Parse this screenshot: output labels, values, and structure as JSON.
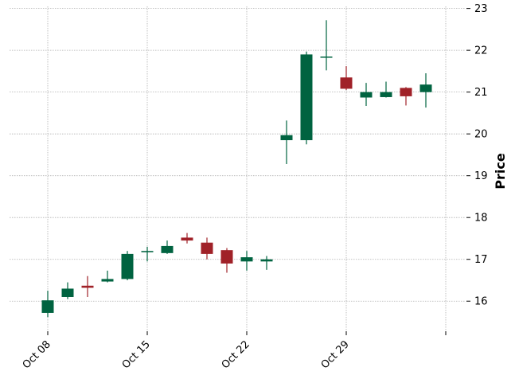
{
  "chart_data": {
    "type": "candlestick",
    "title": "",
    "xlabel": "",
    "ylabel": "Price",
    "ylim": [
      15.3,
      23.05
    ],
    "yticks": [
      16,
      17,
      18,
      19,
      20,
      21,
      22,
      23
    ],
    "grid": true,
    "y_axis_side": "right",
    "colors": {
      "up": "#006340",
      "down": "#a02128",
      "grid": "#b0b0b0"
    },
    "x_tick_labels": [
      "Oct 08",
      "Oct 15",
      "Oct 22",
      "Oct 29",
      ""
    ],
    "x_tick_dates": [
      "2012-10-08",
      "2012-10-15",
      "2012-10-22",
      "2012-10-29",
      "2012-11-05"
    ],
    "candles": [
      {
        "date": "2012-10-08",
        "open": 15.72,
        "high": 16.25,
        "low": 15.62,
        "close": 16.02
      },
      {
        "date": "2012-10-09",
        "open": 16.1,
        "high": 16.45,
        "low": 16.05,
        "close": 16.3
      },
      {
        "date": "2012-10-10",
        "open": 16.37,
        "high": 16.6,
        "low": 16.1,
        "close": 16.32
      },
      {
        "date": "2012-10-11",
        "open": 16.47,
        "high": 16.73,
        "low": 16.45,
        "close": 16.53
      },
      {
        "date": "2012-10-12",
        "open": 16.53,
        "high": 17.2,
        "low": 16.5,
        "close": 17.13
      },
      {
        "date": "2012-10-15",
        "open": 17.17,
        "high": 17.3,
        "low": 16.95,
        "close": 17.2
      },
      {
        "date": "2012-10-16",
        "open": 17.15,
        "high": 17.45,
        "low": 17.13,
        "close": 17.32
      },
      {
        "date": "2012-10-17",
        "open": 17.52,
        "high": 17.63,
        "low": 17.38,
        "close": 17.45
      },
      {
        "date": "2012-10-18",
        "open": 17.4,
        "high": 17.52,
        "low": 17.0,
        "close": 17.13
      },
      {
        "date": "2012-10-19",
        "open": 17.22,
        "high": 17.27,
        "low": 16.68,
        "close": 16.9
      },
      {
        "date": "2012-10-22",
        "open": 16.95,
        "high": 17.2,
        "low": 16.73,
        "close": 17.05
      },
      {
        "date": "2012-10-23",
        "open": 16.95,
        "high": 17.08,
        "low": 16.75,
        "close": 17.0
      },
      {
        "date": "2012-10-24",
        "open": 19.85,
        "high": 20.32,
        "low": 19.28,
        "close": 19.97
      },
      {
        "date": "2012-10-25",
        "open": 19.85,
        "high": 21.97,
        "low": 19.75,
        "close": 21.9
      },
      {
        "date": "2012-10-26",
        "open": 21.83,
        "high": 22.72,
        "low": 21.52,
        "close": 21.85
      },
      {
        "date": "2012-10-29",
        "open": 21.35,
        "high": 21.62,
        "low": 21.05,
        "close": 21.08
      },
      {
        "date": "2012-10-30",
        "open": 20.87,
        "high": 21.22,
        "low": 20.67,
        "close": 21.0
      },
      {
        "date": "2012-10-31",
        "open": 20.88,
        "high": 21.25,
        "low": 20.87,
        "close": 21.0
      },
      {
        "date": "2012-11-01",
        "open": 21.1,
        "high": 21.12,
        "low": 20.68,
        "close": 20.9
      },
      {
        "date": "2012-11-02",
        "open": 21.0,
        "high": 21.45,
        "low": 20.63,
        "close": 21.18
      }
    ]
  }
}
